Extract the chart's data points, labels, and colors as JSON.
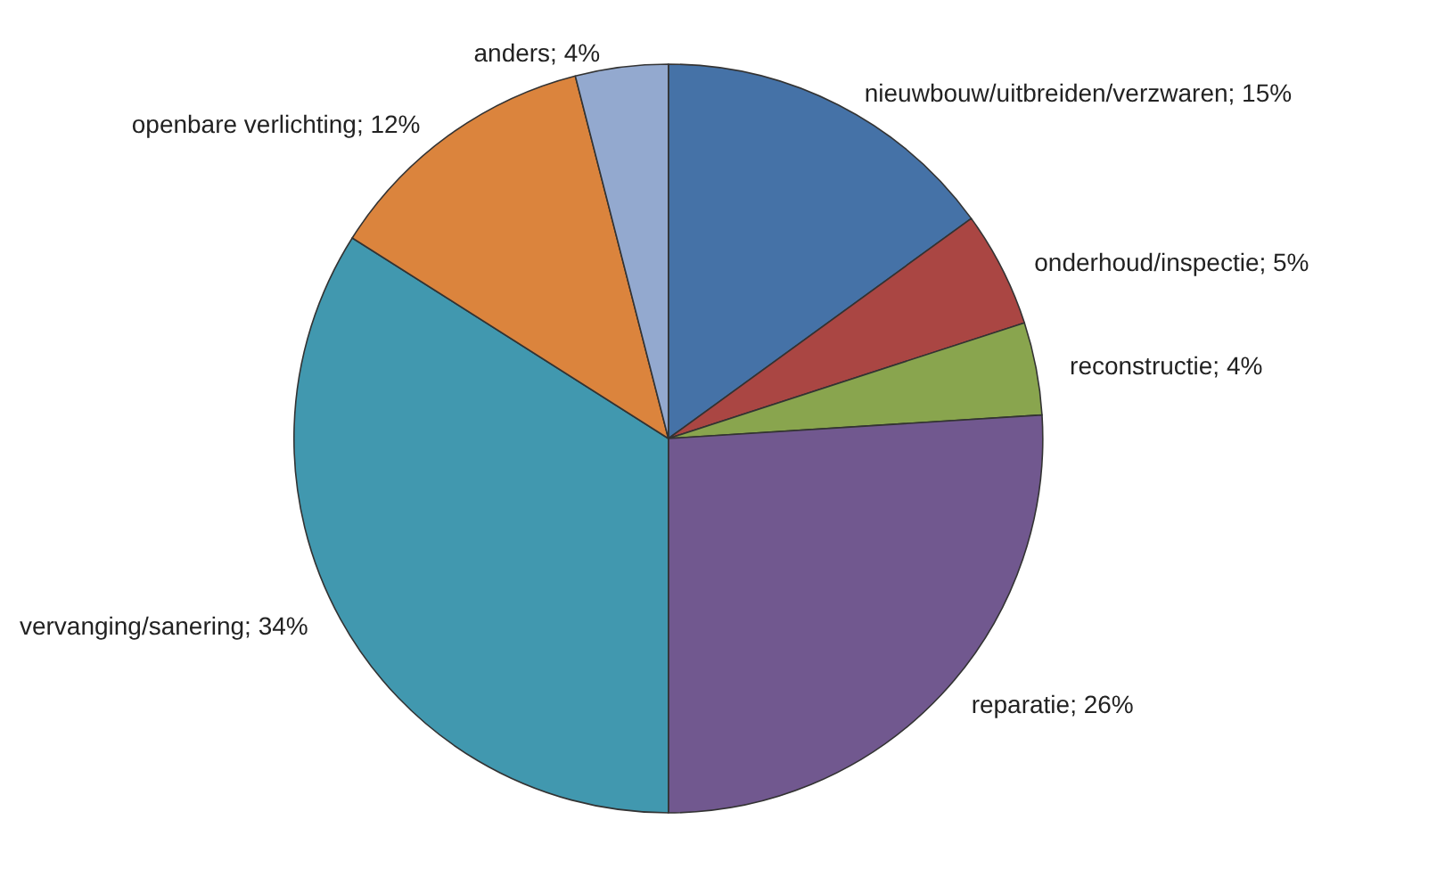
{
  "chart_data": {
    "type": "pie",
    "categories": [
      "nieuwbouw/uitbreiden/verzwaren",
      "onderhoud/inspectie",
      "reconstructie",
      "reparatie",
      "vervanging/sanering",
      "openbare verlichting",
      "anders"
    ],
    "values": [
      15,
      5,
      4,
      26,
      34,
      12,
      4
    ],
    "value_labels": [
      "15%",
      "5%",
      "4%",
      "26%",
      "34%",
      "12%",
      "4%"
    ],
    "colors": [
      "#4572a7",
      "#aa4643",
      "#89a54e",
      "#71588f",
      "#4198af",
      "#db843d",
      "#93a9cf"
    ]
  }
}
